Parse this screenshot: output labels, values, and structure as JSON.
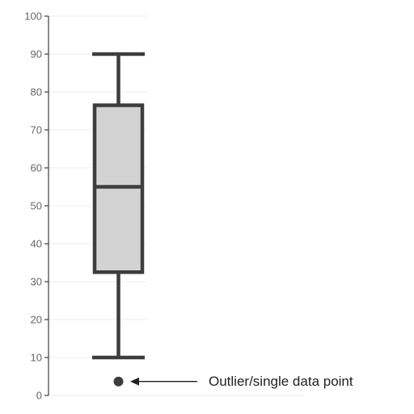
{
  "chart_data": {
    "type": "box",
    "title": "",
    "xlabel": "",
    "ylabel": "",
    "ylim": [
      0,
      100
    ],
    "yticks": [
      "0",
      "10",
      "20",
      "30",
      "40",
      "50",
      "60",
      "70",
      "80",
      "90",
      "100"
    ],
    "grid": true,
    "box": {
      "whisker_low": 10,
      "q1": 32.5,
      "median": 55,
      "q3": 76.5,
      "whisker_high": 90,
      "outliers": [
        4
      ]
    },
    "annotations": [
      {
        "text": "Outlier/single data point",
        "target": "outlier",
        "arrow": true
      }
    ],
    "colors": {
      "box_fill": "#d3d3d3",
      "stroke": "#3d3d3d",
      "axis": "#3d3d3d",
      "grid": "#eeeeee",
      "tick_text": "#666666",
      "annotation_text": "#222222"
    }
  }
}
